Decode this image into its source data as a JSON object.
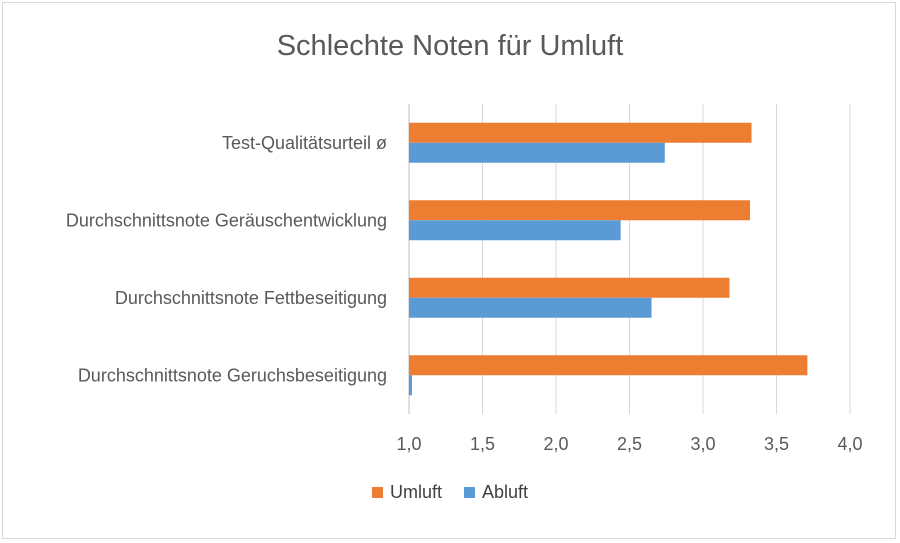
{
  "chart_data": {
    "type": "bar",
    "orientation": "horizontal",
    "title": "Schlechte Noten für Umluft",
    "categories": [
      "Test-Qualitätsurteil ø",
      "Durchschnittsnote Geräuschentwicklung",
      "Durchschnittsnote Fettbeseitigung",
      "Durchschnittsnote Geruchsbeseitigung"
    ],
    "series": [
      {
        "name": "Umluft",
        "color": "#ED7D31",
        "values": [
          3.33,
          3.32,
          3.18,
          3.71
        ]
      },
      {
        "name": "Abluft",
        "color": "#5B9BD5",
        "values": [
          2.74,
          2.44,
          2.65,
          1.02
        ]
      }
    ],
    "xlim": [
      1.0,
      4.0
    ],
    "xticks": [
      "1,0",
      "1,5",
      "2,0",
      "2,5",
      "3,0",
      "3,5",
      "4,0"
    ],
    "grid": true,
    "legend_position": "bottom"
  }
}
